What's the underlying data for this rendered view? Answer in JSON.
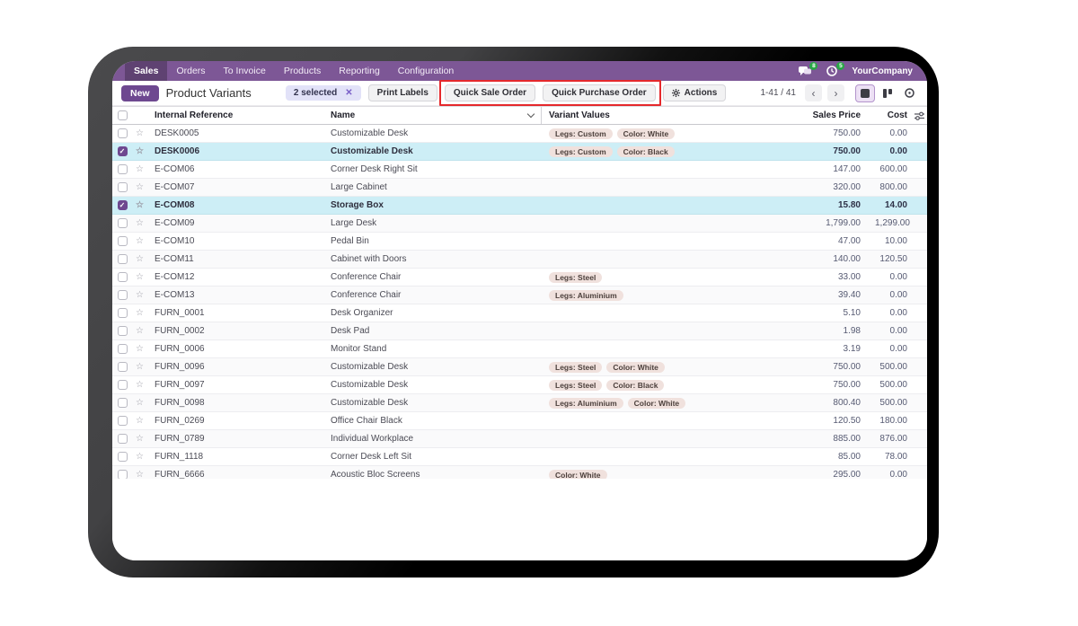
{
  "nav": {
    "menus": [
      "Sales",
      "Orders",
      "To Invoice",
      "Products",
      "Reporting",
      "Configuration"
    ],
    "active_menu": "Sales",
    "systray": {
      "messages_count": "8",
      "activities_count": "5",
      "company": "YourCompany"
    }
  },
  "control_panel": {
    "new_label": "New",
    "title": "Product Variants",
    "selection": {
      "label": "2 selected",
      "clear": "✕"
    },
    "buttons": {
      "print_labels": "Print Labels",
      "quick_sale": "Quick Sale Order",
      "quick_purchase": "Quick Purchase Order",
      "actions": "Actions"
    },
    "pager": {
      "range": "1-41 / 41",
      "prev": "‹",
      "next": "›"
    }
  },
  "table": {
    "columns": [
      "Internal Reference",
      "Name",
      "Variant Values",
      "Sales Price",
      "Cost"
    ],
    "rows": [
      {
        "ref": "DESK0005",
        "name": "Customizable Desk",
        "tags": [
          "Legs: Custom",
          "Color: White"
        ],
        "sales_price": "750.00",
        "cost": "0.00",
        "selected": false
      },
      {
        "ref": "DESK0006",
        "name": "Customizable Desk",
        "tags": [
          "Legs: Custom",
          "Color: Black"
        ],
        "sales_price": "750.00",
        "cost": "0.00",
        "selected": true
      },
      {
        "ref": "E-COM06",
        "name": "Corner Desk Right Sit",
        "tags": [],
        "sales_price": "147.00",
        "cost": "600.00",
        "selected": false
      },
      {
        "ref": "E-COM07",
        "name": "Large Cabinet",
        "tags": [],
        "sales_price": "320.00",
        "cost": "800.00",
        "selected": false
      },
      {
        "ref": "E-COM08",
        "name": "Storage Box",
        "tags": [],
        "sales_price": "15.80",
        "cost": "14.00",
        "selected": true
      },
      {
        "ref": "E-COM09",
        "name": "Large Desk",
        "tags": [],
        "sales_price": "1,799.00",
        "cost": "1,299.00",
        "selected": false
      },
      {
        "ref": "E-COM10",
        "name": "Pedal Bin",
        "tags": [],
        "sales_price": "47.00",
        "cost": "10.00",
        "selected": false
      },
      {
        "ref": "E-COM11",
        "name": "Cabinet with Doors",
        "tags": [],
        "sales_price": "140.00",
        "cost": "120.50",
        "selected": false
      },
      {
        "ref": "E-COM12",
        "name": "Conference Chair",
        "tags": [
          "Legs: Steel"
        ],
        "sales_price": "33.00",
        "cost": "0.00",
        "selected": false
      },
      {
        "ref": "E-COM13",
        "name": "Conference Chair",
        "tags": [
          "Legs: Aluminium"
        ],
        "sales_price": "39.40",
        "cost": "0.00",
        "selected": false
      },
      {
        "ref": "FURN_0001",
        "name": "Desk Organizer",
        "tags": [],
        "sales_price": "5.10",
        "cost": "0.00",
        "selected": false
      },
      {
        "ref": "FURN_0002",
        "name": "Desk Pad",
        "tags": [],
        "sales_price": "1.98",
        "cost": "0.00",
        "selected": false
      },
      {
        "ref": "FURN_0006",
        "name": "Monitor Stand",
        "tags": [],
        "sales_price": "3.19",
        "cost": "0.00",
        "selected": false
      },
      {
        "ref": "FURN_0096",
        "name": "Customizable Desk",
        "tags": [
          "Legs: Steel",
          "Color: White"
        ],
        "sales_price": "750.00",
        "cost": "500.00",
        "selected": false
      },
      {
        "ref": "FURN_0097",
        "name": "Customizable Desk",
        "tags": [
          "Legs: Steel",
          "Color: Black"
        ],
        "sales_price": "750.00",
        "cost": "500.00",
        "selected": false
      },
      {
        "ref": "FURN_0098",
        "name": "Customizable Desk",
        "tags": [
          "Legs: Aluminium",
          "Color: White"
        ],
        "sales_price": "800.40",
        "cost": "500.00",
        "selected": false
      },
      {
        "ref": "FURN_0269",
        "name": "Office Chair Black",
        "tags": [],
        "sales_price": "120.50",
        "cost": "180.00",
        "selected": false
      },
      {
        "ref": "FURN_0789",
        "name": "Individual Workplace",
        "tags": [],
        "sales_price": "885.00",
        "cost": "876.00",
        "selected": false
      },
      {
        "ref": "FURN_1118",
        "name": "Corner Desk Left Sit",
        "tags": [],
        "sales_price": "85.00",
        "cost": "78.00",
        "selected": false
      },
      {
        "ref": "FURN_6666",
        "name": "Acoustic Bloc Screens",
        "tags": [
          "Color: White"
        ],
        "sales_price": "295.00",
        "cost": "0.00",
        "selected": false
      }
    ]
  },
  "colors": {
    "navbar_purple": "#7d5796",
    "primary_button_purple": "#6e4890",
    "selected_row_blue": "#cdeef6",
    "annotation_red": "#e5282c",
    "badge_green": "#28a745",
    "tag_beige": "#f0e1dd"
  }
}
